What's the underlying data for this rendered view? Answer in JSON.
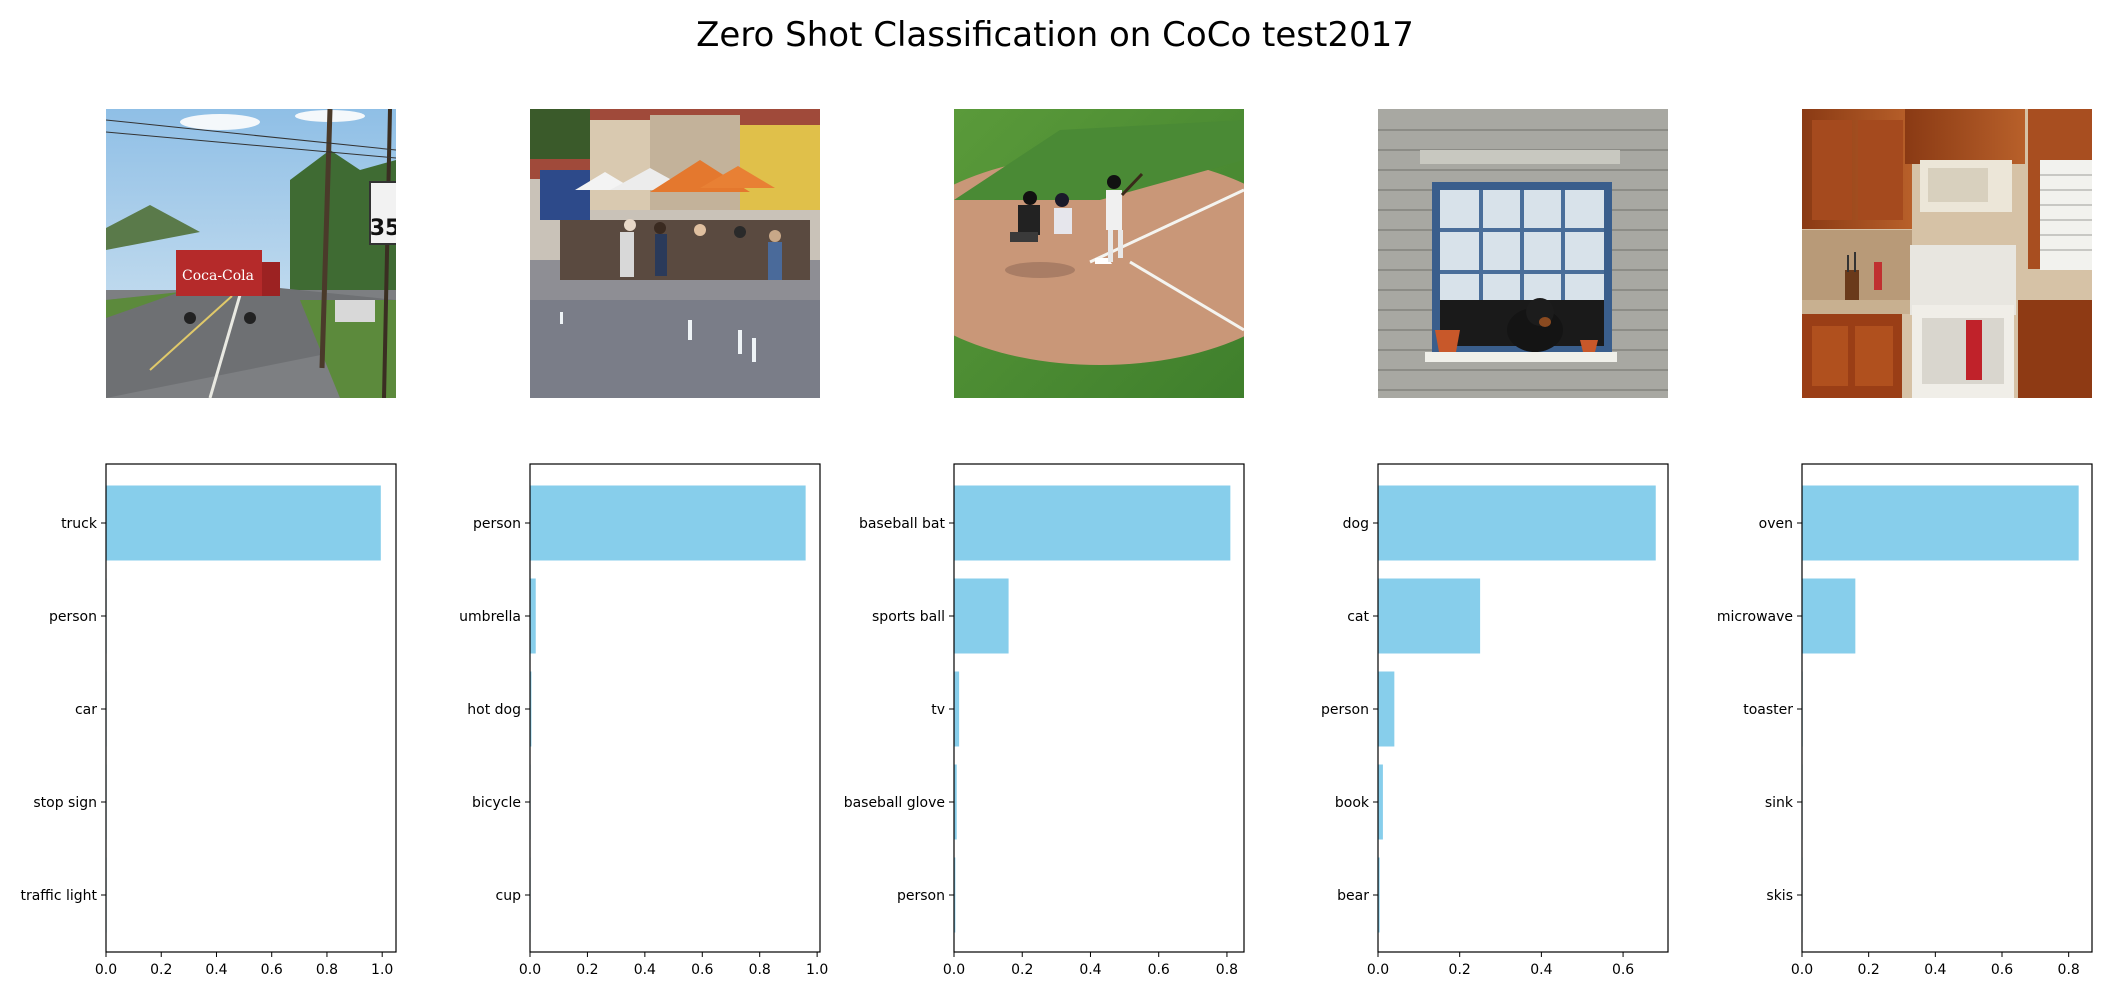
{
  "title": "Zero Shot Classification on CoCo test2017",
  "colors": {
    "bar": "#87ceeb",
    "axis": "#000000",
    "background": "#ffffff"
  },
  "chart_data": [
    {
      "type": "bar",
      "orientation": "horizontal",
      "image": "road with red Coca-Cola delivery truck, utility poles and speed limit sign",
      "categories": [
        "truck",
        "person",
        "car",
        "stop sign",
        "traffic light"
      ],
      "values": [
        0.995,
        0.001,
        0.001,
        0.0005,
        0.0005
      ],
      "xlim": [
        0,
        1.05
      ],
      "xticks": [
        "0.0",
        "0.2",
        "0.4",
        "0.6",
        "0.8",
        "1.0"
      ]
    },
    {
      "type": "bar",
      "orientation": "horizontal",
      "image": "street cafe with people under white and orange umbrellas and fountain jets",
      "categories": [
        "person",
        "umbrella",
        "hot dog",
        "bicycle",
        "cup"
      ],
      "values": [
        0.96,
        0.02,
        0.005,
        0.002,
        0.001
      ],
      "xlim": [
        0,
        1.01
      ],
      "xticks": [
        "0.0",
        "0.2",
        "0.4",
        "0.6",
        "0.8",
        "1.0"
      ]
    },
    {
      "type": "bar",
      "orientation": "horizontal",
      "image": "baseball batter at home plate with catcher and umpire on green field",
      "categories": [
        "baseball bat",
        "sports ball",
        "tv",
        "baseball glove",
        "person"
      ],
      "values": [
        0.81,
        0.16,
        0.015,
        0.008,
        0.004
      ],
      "xlim": [
        0,
        0.85
      ],
      "xticks": [
        "0.0",
        "0.2",
        "0.4",
        "0.6",
        "0.8"
      ]
    },
    {
      "type": "bar",
      "orientation": "horizontal",
      "image": "black dog looking out of a window in a brick wall",
      "categories": [
        "dog",
        "cat",
        "person",
        "book",
        "bear"
      ],
      "values": [
        0.68,
        0.25,
        0.04,
        0.012,
        0.004
      ],
      "xlim": [
        0,
        0.71
      ],
      "xticks": [
        "0.0",
        "0.2",
        "0.4",
        "0.6"
      ]
    },
    {
      "type": "bar",
      "orientation": "horizontal",
      "image": "kitchen with wooden cabinets, white stove oven and microwave",
      "categories": [
        "oven",
        "microwave",
        "toaster",
        "sink",
        "skis"
      ],
      "values": [
        0.83,
        0.16,
        0.002,
        0.001,
        0.0005
      ],
      "xlim": [
        0,
        0.87
      ],
      "xticks": [
        "0.0",
        "0.2",
        "0.4",
        "0.6",
        "0.8"
      ]
    }
  ]
}
